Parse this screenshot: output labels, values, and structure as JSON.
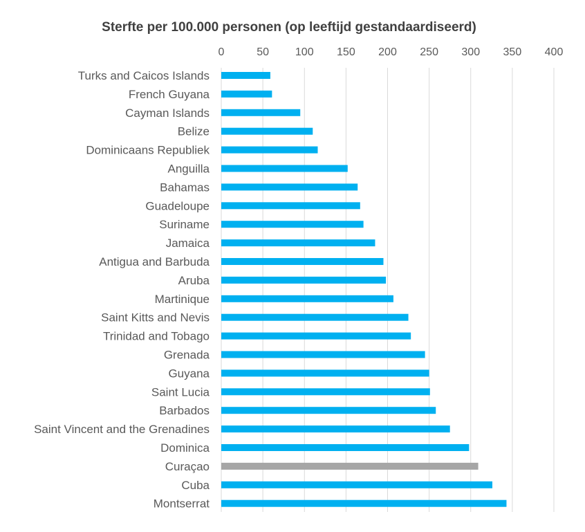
{
  "chart_data": {
    "type": "bar",
    "orientation": "horizontal",
    "title": "Sterfte per 100.000 personen (op leeftijd gestandaardiseerd)",
    "xlabel": "",
    "ylabel": "",
    "xlim": [
      0,
      400
    ],
    "xticks": [
      "0",
      "50",
      "100",
      "150",
      "200",
      "250",
      "300",
      "350",
      "400"
    ],
    "grid": "vertical",
    "legend": "none",
    "colors": {
      "default": "#00b0f0",
      "highlight": "#a6a6a6"
    },
    "highlight_category": "Curaçao",
    "categories": [
      "Turks and Caicos Islands",
      "French Guyana",
      "Cayman Islands",
      "Belize",
      "Dominicaans Republiek",
      "Anguilla",
      "Bahamas",
      "Guadeloupe",
      "Suriname",
      "Jamaica",
      "Antigua and Barbuda",
      "Aruba",
      "Martinique",
      "Saint Kitts and Nevis",
      "Trinidad and Tobago",
      "Grenada",
      "Guyana",
      "Saint Lucia",
      "Barbados",
      "Saint Vincent and the Grenadines",
      "Dominica",
      "Curaçao",
      "Cuba",
      "Montserrat"
    ],
    "values": [
      59,
      61,
      95,
      110,
      116,
      152,
      164,
      167,
      171,
      185,
      195,
      198,
      207,
      225,
      228,
      245,
      250,
      251,
      258,
      275,
      298,
      309,
      326,
      343
    ]
  }
}
